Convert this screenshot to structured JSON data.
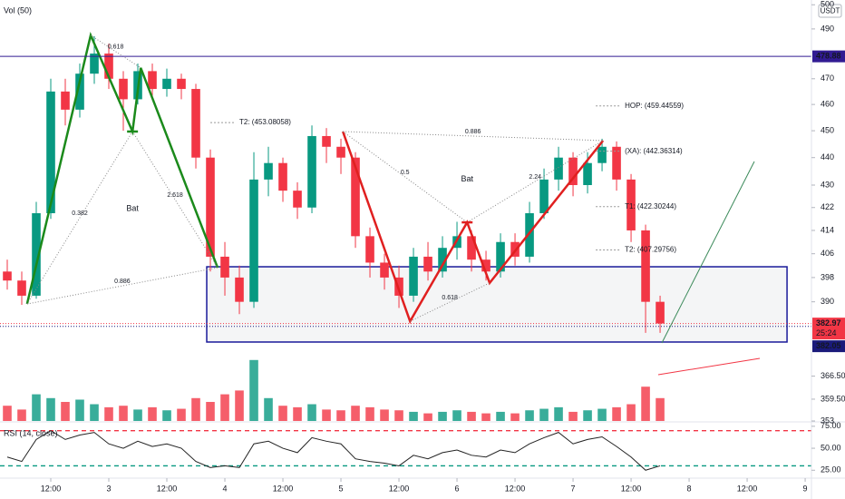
{
  "chart_data": {
    "type": "candlestick",
    "volume_label": "Vol (50)",
    "rsi_label": "RSI (14, close)",
    "currency": "USDT",
    "log_scale": true,
    "grid": false,
    "colors": {
      "up": "#089981",
      "down": "#f23645"
    },
    "x": [
      -21,
      -18,
      -15,
      -12,
      -9,
      -6,
      -3,
      0,
      3,
      6,
      9,
      12,
      15,
      18,
      21,
      24,
      27,
      30,
      33,
      36,
      39,
      42,
      45,
      48,
      51,
      54,
      57,
      60,
      63,
      66,
      69,
      72,
      75,
      78,
      81,
      84,
      87,
      90,
      93,
      96,
      99,
      102,
      105,
      108,
      111,
      114
    ],
    "open": [
      400,
      397,
      392,
      420,
      465,
      458,
      472,
      480,
      470,
      462,
      473,
      466,
      470,
      466,
      440,
      405,
      398,
      390,
      432,
      438,
      428,
      422,
      448,
      444,
      440,
      412,
      403,
      398,
      392,
      405,
      400,
      408,
      412,
      404,
      400,
      410,
      405,
      420,
      432,
      440,
      430,
      438,
      444,
      432,
      414,
      390
    ],
    "high": [
      404,
      400,
      424,
      470,
      470,
      476,
      487,
      484,
      473,
      476,
      476,
      474,
      472,
      468,
      443,
      410,
      402,
      442,
      444,
      440,
      431,
      452,
      451,
      447,
      442,
      415,
      406,
      402,
      408,
      410,
      412,
      417,
      414,
      407,
      413,
      413,
      424,
      436,
      444,
      442,
      442,
      447,
      446,
      434,
      416,
      392
    ],
    "low": [
      394,
      389,
      391,
      418,
      452,
      455,
      468,
      466,
      450,
      460,
      462,
      463,
      462,
      436,
      400,
      392,
      386,
      388,
      426,
      424,
      418,
      420,
      438,
      434,
      408,
      398,
      394,
      388,
      390,
      397,
      398,
      404,
      400,
      397,
      398,
      402,
      403,
      418,
      428,
      426,
      427,
      435,
      428,
      410,
      380,
      380
    ],
    "close": [
      397,
      392,
      420,
      465,
      458,
      472,
      480,
      470,
      462,
      473,
      466,
      470,
      466,
      440,
      405,
      398,
      390,
      432,
      438,
      428,
      422,
      448,
      444,
      440,
      412,
      403,
      398,
      392,
      405,
      400,
      408,
      412,
      404,
      400,
      410,
      405,
      420,
      432,
      440,
      430,
      438,
      444,
      432,
      414,
      390,
      383
    ],
    "volume": [
      20,
      15,
      35,
      30,
      25,
      28,
      22,
      18,
      20,
      15,
      18,
      14,
      16,
      30,
      25,
      35,
      40,
      80,
      30,
      20,
      18,
      22,
      15,
      14,
      20,
      18,
      15,
      14,
      12,
      10,
      12,
      14,
      12,
      10,
      12,
      10,
      14,
      16,
      18,
      12,
      14,
      16,
      18,
      22,
      45,
      30
    ],
    "rsi": [
      40,
      35,
      60,
      70,
      60,
      65,
      68,
      55,
      50,
      58,
      52,
      55,
      50,
      35,
      28,
      30,
      28,
      55,
      58,
      50,
      45,
      62,
      58,
      55,
      38,
      35,
      33,
      30,
      42,
      38,
      45,
      48,
      42,
      40,
      48,
      45,
      55,
      62,
      68,
      55,
      60,
      63,
      52,
      40,
      25,
      30
    ],
    "xlim": [
      -22.5,
      145.3
    ],
    "xticks": [
      {
        "value": -12,
        "label": "12:00"
      },
      {
        "value": 0,
        "label": "3"
      },
      {
        "value": 12,
        "label": "12:00"
      },
      {
        "value": 24,
        "label": "4"
      },
      {
        "value": 36,
        "label": "12:00"
      },
      {
        "value": 48,
        "label": "5"
      },
      {
        "value": 60,
        "label": "12:00"
      },
      {
        "value": 72,
        "label": "6"
      },
      {
        "value": 84,
        "label": "12:00"
      },
      {
        "value": 96,
        "label": "7"
      },
      {
        "value": 108,
        "label": "12:00"
      },
      {
        "value": 120,
        "label": "8"
      },
      {
        "value": 132,
        "label": "12:00"
      },
      {
        "value": 144,
        "label": "9"
      }
    ],
    "ylim": [
      353,
      502
    ],
    "yticks": [
      500,
      490,
      470,
      460,
      450,
      440,
      430,
      422,
      414,
      406,
      398,
      390,
      {
        "value": 366.5,
        "label": "366.50"
      },
      {
        "value": 359.5,
        "label": "359.50"
      },
      353
    ],
    "volume_ylim": [
      0,
      100
    ],
    "rsi_ylim": [
      16,
      80
    ],
    "rsi_ticks": [
      {
        "value": 75,
        "label": "75.00"
      },
      {
        "value": 50,
        "label": "50.00"
      },
      {
        "value": 25,
        "label": "25.00"
      }
    ],
    "rsi_bands": [
      {
        "value": 70,
        "color": "#f23645"
      },
      {
        "value": 30,
        "color": "#089981"
      }
    ],
    "price_lines": [
      {
        "value": 478.88,
        "color": "#311b92"
      },
      {
        "value": 382.97,
        "color": "#f23645"
      },
      {
        "value": 382.05,
        "color": "#1a1a7a"
      }
    ],
    "countdown": "25:24",
    "zone": {
      "x": [
        20.25,
        140.25
      ],
      "y": [
        377.1,
        401.6
      ],
      "color": "#1a1a9a"
    },
    "patterns": [
      {
        "name": "Bat",
        "color": "#1b8a1b",
        "points": [
          {
            "x": -16.9,
            "y": 389.3
          },
          {
            "x": -3.75,
            "y": 487.4
          },
          {
            "x": 4.9,
            "y": 449.7
          },
          {
            "x": 6.6,
            "y": 474.3
          },
          {
            "x": 22.5,
            "y": 401.3
          }
        ],
        "ratios": [
          0.382,
          0.618,
          2.618,
          0.886
        ],
        "targets": [
          {
            "value": 453.08058,
            "label": "T2: (453.08058)"
          }
        ]
      },
      {
        "name": "Bat",
        "color": "#e02020",
        "points": [
          {
            "x": 48.4,
            "y": 449.7
          },
          {
            "x": 62.3,
            "y": 383.7
          },
          {
            "x": 74.1,
            "y": 416.8
          },
          {
            "x": 78.75,
            "y": 396.2
          },
          {
            "x": 102.2,
            "y": 446.3
          }
        ],
        "ratios": [
          0.5,
          0.618,
          2.24,
          0.886
        ],
        "targets": [
          {
            "value": 459.44559,
            "label": "HOP: (459.44559)"
          },
          {
            "value": 442.36314,
            "label": "(XA): (442.36314)"
          },
          {
            "value": 422.30244,
            "label": "T1: (422.30244)"
          },
          {
            "value": 407.29756,
            "label": "T2: (407.29756)"
          }
        ]
      }
    ]
  }
}
